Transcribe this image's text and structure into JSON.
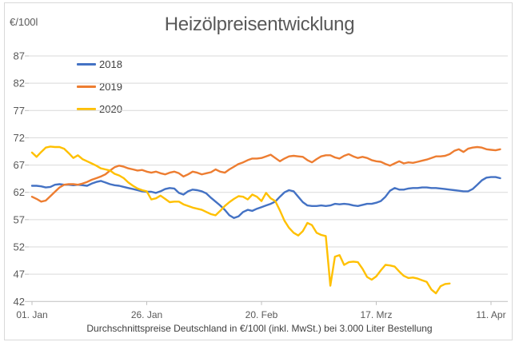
{
  "chart": {
    "title": "Heizölpreisentwicklung",
    "unit_label": "€/100l",
    "caption": "Durchschnittspreise Deutschland in €/100l (inkl. MwSt.) bei 3.000 Liter Bestellung"
  },
  "colors": {
    "series_2018": "#4472C4",
    "series_2019": "#ED7D31",
    "series_2020": "#FFC000",
    "gridline": "#d9d9d9",
    "axis": "#bfbfbf",
    "text": "#595959",
    "caption_text": "#404040",
    "frame_border": "#d9d9d9",
    "background": "#ffffff"
  },
  "chart_data": {
    "type": "line",
    "title": "Heizölpreisentwicklung",
    "ylabel": "€/100l",
    "xlabel": "",
    "ylim": [
      42,
      87
    ],
    "y_ticks": [
      42,
      47,
      52,
      57,
      62,
      67,
      72,
      77,
      82,
      87
    ],
    "x_ticks": [
      {
        "day": 0,
        "label": "01. Jan"
      },
      {
        "day": 25,
        "label": "26. Jan"
      },
      {
        "day": 50,
        "label": "20. Feb"
      },
      {
        "day": 75,
        "label": "17. Mrz"
      },
      {
        "day": 100,
        "label": "11. Apr"
      }
    ],
    "x_unit": "day of year, daily values starting 01. Jan",
    "step_days": 1,
    "grid": "horizontal",
    "legend_position": "top-left-inside",
    "series": [
      {
        "name": "2018",
        "color": "#4472C4",
        "start_day": 0,
        "values": [
          63.2,
          63.2,
          63.1,
          62.9,
          63.0,
          63.4,
          63.5,
          63.4,
          63.4,
          63.3,
          63.4,
          63.3,
          63.2,
          63.6,
          63.9,
          64.1,
          63.8,
          63.5,
          63.3,
          63.2,
          63.0,
          62.8,
          62.6,
          62.4,
          62.2,
          62.1,
          62.1,
          61.9,
          62.2,
          62.6,
          62.8,
          62.7,
          61.9,
          61.6,
          62.2,
          62.5,
          62.4,
          62.2,
          61.8,
          61.0,
          60.3,
          59.6,
          58.8,
          57.8,
          57.3,
          57.6,
          58.4,
          58.8,
          58.6,
          59.0,
          59.3,
          59.6,
          59.9,
          60.3,
          61.2,
          62.0,
          62.4,
          62.2,
          61.2,
          60.2,
          59.6,
          59.5,
          59.5,
          59.6,
          59.5,
          59.6,
          59.9,
          59.8,
          59.9,
          59.8,
          59.6,
          59.5,
          59.7,
          59.9,
          59.9,
          60.1,
          60.4,
          61.2,
          62.3,
          62.8,
          62.5,
          62.5,
          62.7,
          62.8,
          62.8,
          62.9,
          62.9,
          62.8,
          62.8,
          62.7,
          62.6,
          62.5,
          62.4,
          62.3,
          62.2,
          62.2,
          62.6,
          63.4,
          64.2,
          64.7,
          64.8,
          64.8,
          64.6
        ]
      },
      {
        "name": "2019",
        "color": "#ED7D31",
        "start_day": 0,
        "values": [
          61.2,
          60.8,
          60.3,
          60.5,
          61.3,
          62.1,
          62.9,
          63.4,
          63.5,
          63.5,
          63.4,
          63.6,
          63.9,
          64.3,
          64.6,
          64.9,
          65.3,
          66.0,
          66.6,
          66.9,
          66.7,
          66.4,
          66.2,
          66.0,
          66.1,
          65.8,
          65.6,
          65.8,
          65.5,
          65.3,
          65.6,
          65.8,
          65.5,
          64.9,
          65.3,
          65.8,
          65.6,
          65.3,
          65.5,
          65.7,
          66.2,
          65.8,
          65.6,
          66.2,
          66.7,
          67.2,
          67.5,
          67.9,
          68.2,
          68.2,
          68.3,
          68.6,
          68.9,
          68.3,
          67.7,
          68.2,
          68.6,
          68.7,
          68.6,
          68.5,
          67.9,
          67.5,
          68.1,
          68.6,
          68.8,
          68.8,
          68.4,
          68.2,
          68.7,
          69.0,
          68.6,
          68.3,
          68.5,
          68.3,
          67.9,
          67.7,
          67.6,
          67.2,
          66.9,
          67.3,
          67.7,
          67.3,
          67.5,
          67.4,
          67.6,
          67.8,
          68.0,
          68.3,
          68.6,
          68.6,
          68.7,
          69.0,
          69.6,
          69.9,
          69.4,
          70.0,
          70.2,
          70.3,
          70.2,
          69.9,
          69.8,
          69.7,
          69.9
        ]
      },
      {
        "name": "2020",
        "color": "#FFC000",
        "start_day": 0,
        "values": [
          69.3,
          68.5,
          69.4,
          70.2,
          70.4,
          70.3,
          70.3,
          70.0,
          69.2,
          68.3,
          68.8,
          68.1,
          67.7,
          67.3,
          66.9,
          66.4,
          66.2,
          66.0,
          65.4,
          65.1,
          64.6,
          63.8,
          63.2,
          62.7,
          62.4,
          62.2,
          60.7,
          60.9,
          61.4,
          60.8,
          60.2,
          60.3,
          60.3,
          59.8,
          59.5,
          59.2,
          59.0,
          58.8,
          58.4,
          58.0,
          57.8,
          58.6,
          59.5,
          60.2,
          60.8,
          61.3,
          61.2,
          60.7,
          61.6,
          61.2,
          60.4,
          61.9,
          60.9,
          60.4,
          58.7,
          56.8,
          55.5,
          54.6,
          54.1,
          54.9,
          56.4,
          56.0,
          54.6,
          54.2,
          54.0,
          44.9,
          50.2,
          50.5,
          48.7,
          49.2,
          49.3,
          49.2,
          48.0,
          46.5,
          46.0,
          46.6,
          47.7,
          48.7,
          48.6,
          48.4,
          47.5,
          46.7,
          46.3,
          46.4,
          46.2,
          45.9,
          45.6,
          44.2,
          43.5,
          44.8,
          45.2,
          45.3
        ]
      }
    ]
  }
}
